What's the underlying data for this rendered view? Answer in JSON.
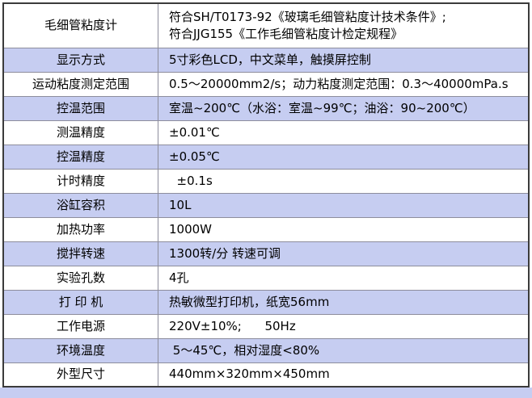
{
  "colors": {
    "shaded_row": "#c6cdf1",
    "border_outer": "#3b3b3b",
    "border_inner": "#8d8d9c",
    "text": "#000000",
    "background": "#ffffff"
  },
  "table": {
    "rows": [
      {
        "label": "毛细管粘度计",
        "value": "符合SH/T0173-92《玻璃毛细管粘度计技术条件》;\n符合JJG155《工作毛细管粘度计检定规程》",
        "shaded": false,
        "tall": true
      },
      {
        "label": "显示方式",
        "value": "5寸彩色LCD，中文菜单，触摸屏控制",
        "shaded": true,
        "tall": false
      },
      {
        "label": "运动粘度测定范围",
        "value": "0.5～20000mm2/s；动力粘度测定范围：0.3～40000mPa.s",
        "shaded": false,
        "tall": false
      },
      {
        "label": "控温范围",
        "value": "室温~200℃（水浴：室温~99℃；油浴：90~200℃）",
        "shaded": true,
        "tall": false
      },
      {
        "label": "测温精度",
        "value": "±0.01℃",
        "shaded": false,
        "tall": false
      },
      {
        "label": "控温精度",
        "value": "±0.05℃",
        "shaded": true,
        "tall": false
      },
      {
        "label": "计时精度",
        "value": "  ±0.1s",
        "shaded": false,
        "tall": false
      },
      {
        "label": "浴缸容积",
        "value": "10L",
        "shaded": true,
        "tall": false
      },
      {
        "label": "加热功率",
        "value": "1000W",
        "shaded": false,
        "tall": false
      },
      {
        "label": "搅拌转速",
        "value": "1300转/分 转速可调",
        "shaded": true,
        "tall": false
      },
      {
        "label": "实验孔数",
        "value": "4孔",
        "shaded": false,
        "tall": false
      },
      {
        "label": "打 印 机",
        "value": "热敏微型打印机，纸宽56mm",
        "shaded": true,
        "tall": false
      },
      {
        "label": "工作电源",
        "value": "220V±10%;      50Hz",
        "shaded": false,
        "tall": false
      },
      {
        "label": "环境温度",
        "value": " 5～45℃，相对湿度<80%",
        "shaded": true,
        "tall": false
      },
      {
        "label": "外型尺寸",
        "value": "440mm×320mm×450mm",
        "shaded": false,
        "tall": false
      }
    ]
  }
}
